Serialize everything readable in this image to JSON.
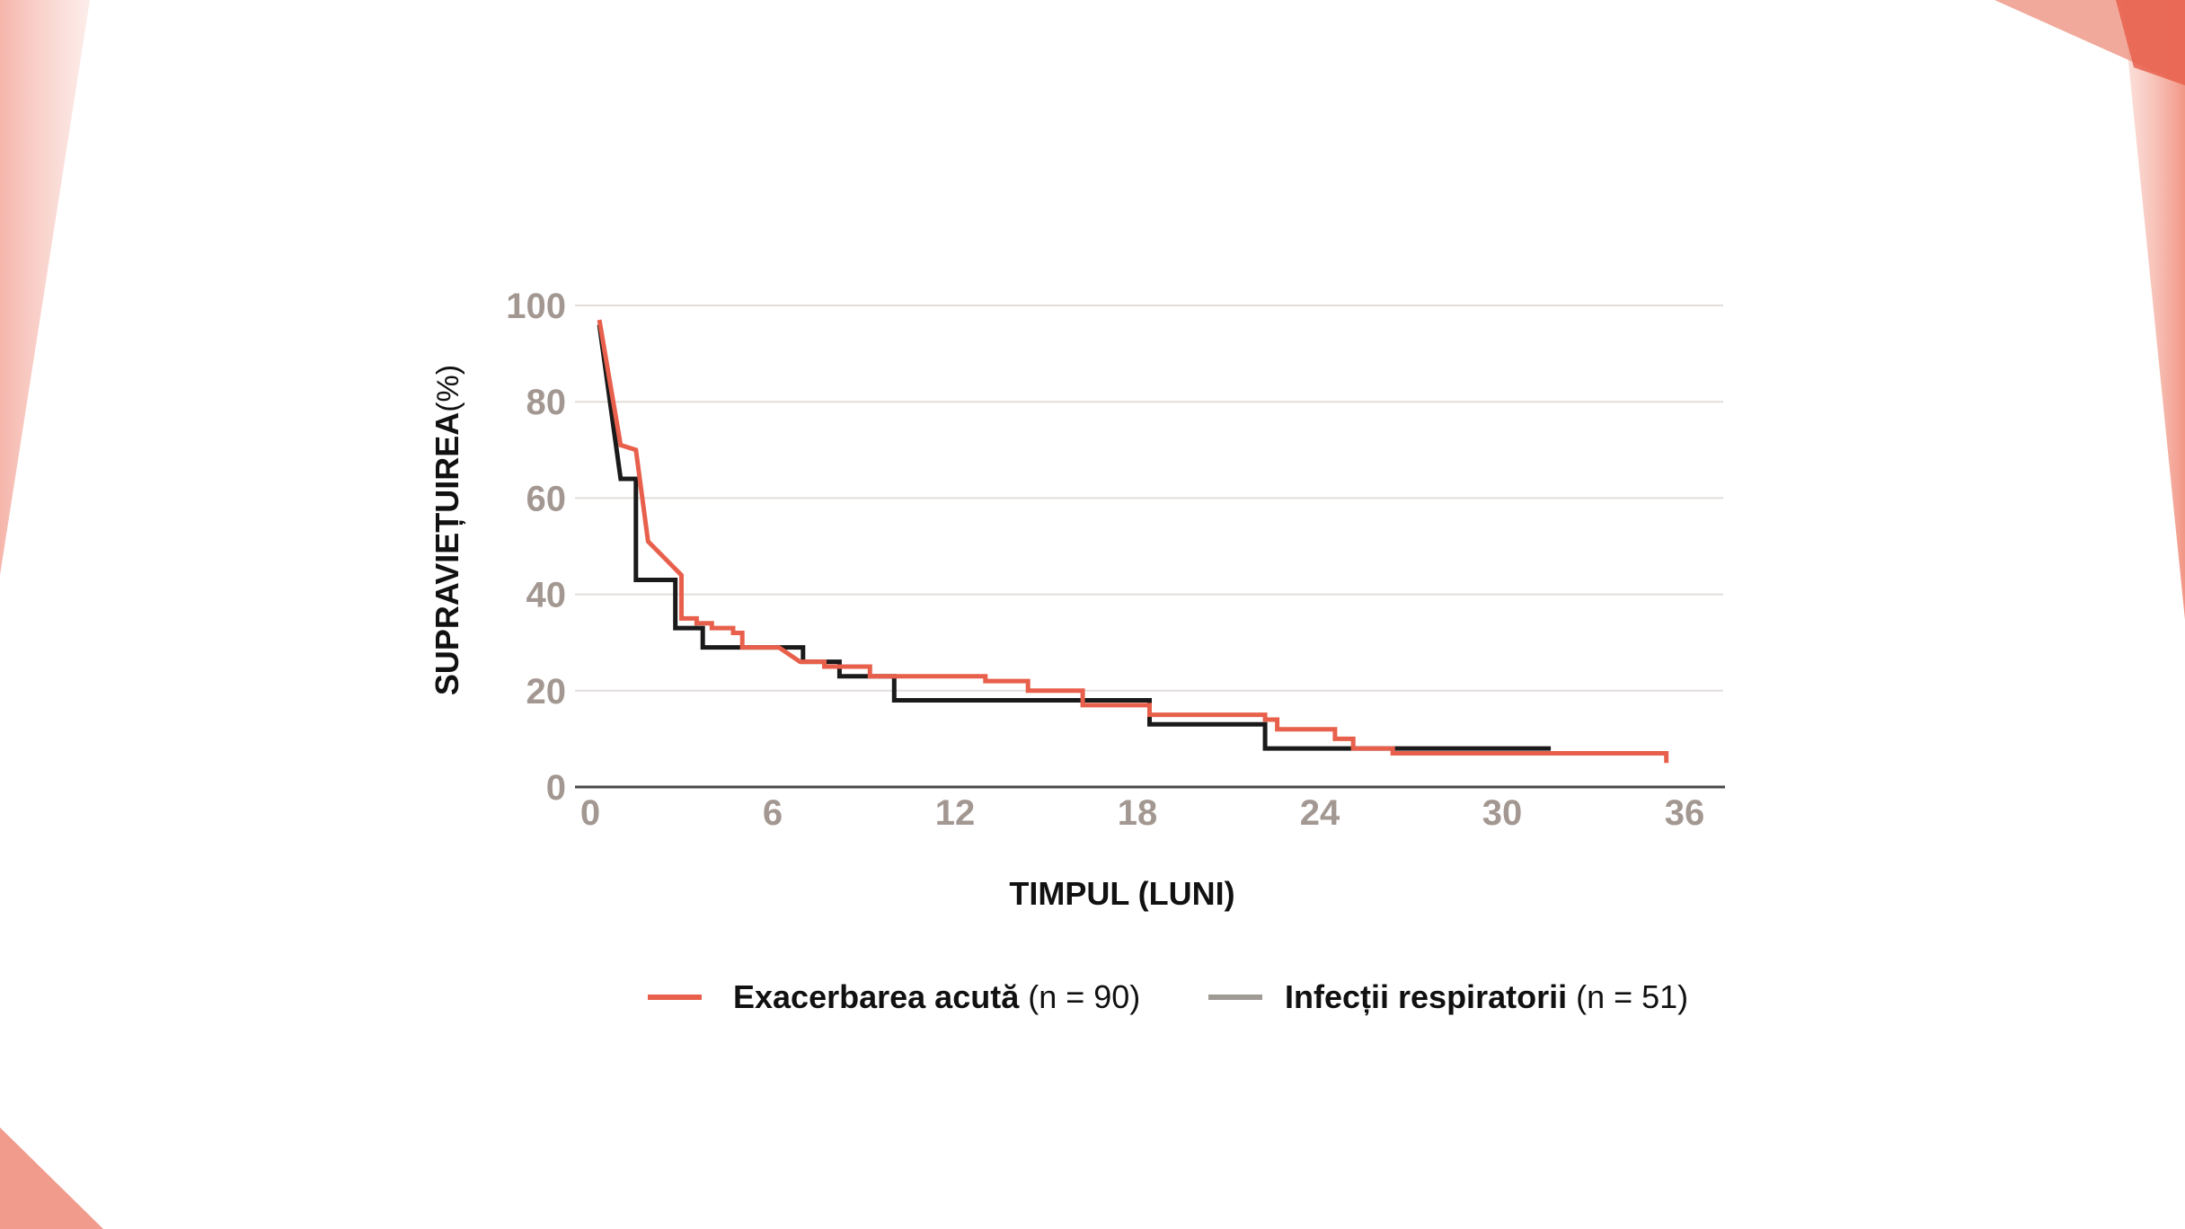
{
  "colors": {
    "accent": "#e8604c",
    "accent_light": "#f4a89c",
    "series_dark": "#1a1a1a",
    "legend_gray": "#a09a94",
    "grid": "#e2dedb",
    "tick": "#a39791"
  },
  "chart_data": {
    "type": "line",
    "step": true,
    "title": "",
    "xlabel": "TIMPUL (LUNI)",
    "ylabel": "SUPRAVIEȚUIREA",
    "ylabel_unit": "(%)",
    "xlim": [
      0,
      36
    ],
    "ylim": [
      0,
      100
    ],
    "xticks": [
      0,
      6,
      12,
      18,
      24,
      30,
      36
    ],
    "yticks": [
      0,
      20,
      40,
      60,
      80,
      100
    ],
    "grid": true,
    "legend_position": "bottom",
    "series": [
      {
        "name": "Infecții respiratorii",
        "n_label": "(n = 51)",
        "legend_color_key": "legend_gray",
        "line_color_key": "series_dark",
        "points": [
          [
            0.3,
            96
          ],
          [
            1.0,
            64
          ],
          [
            1.5,
            64
          ],
          [
            1.5,
            43
          ],
          [
            2.8,
            43
          ],
          [
            2.8,
            33
          ],
          [
            3.7,
            33
          ],
          [
            3.7,
            29
          ],
          [
            7.0,
            29
          ],
          [
            7.0,
            26
          ],
          [
            8.2,
            26
          ],
          [
            8.2,
            23
          ],
          [
            10.0,
            23
          ],
          [
            10.0,
            18
          ],
          [
            18.4,
            18
          ],
          [
            18.4,
            13
          ],
          [
            22.2,
            13
          ],
          [
            22.2,
            8
          ],
          [
            31.6,
            8
          ]
        ]
      },
      {
        "name": "Exacerbarea acută",
        "n_label": "(n = 90)",
        "legend_color_key": "accent",
        "line_color_key": "accent",
        "points": [
          [
            0.3,
            97
          ],
          [
            1.0,
            71
          ],
          [
            1.5,
            70
          ],
          [
            1.9,
            51
          ],
          [
            3.0,
            44
          ],
          [
            3.0,
            35
          ],
          [
            3.5,
            35
          ],
          [
            3.5,
            34
          ],
          [
            4.0,
            34
          ],
          [
            4.0,
            33
          ],
          [
            4.7,
            33
          ],
          [
            4.7,
            32
          ],
          [
            5.0,
            32
          ],
          [
            5.0,
            29
          ],
          [
            6.2,
            29
          ],
          [
            6.9,
            26
          ],
          [
            7.7,
            26
          ],
          [
            7.7,
            25
          ],
          [
            9.2,
            25
          ],
          [
            9.2,
            23
          ],
          [
            13.0,
            23
          ],
          [
            13.0,
            22
          ],
          [
            14.4,
            22
          ],
          [
            14.4,
            20
          ],
          [
            16.2,
            20
          ],
          [
            16.2,
            17
          ],
          [
            18.4,
            17
          ],
          [
            18.4,
            15
          ],
          [
            22.2,
            15
          ],
          [
            22.2,
            14
          ],
          [
            22.6,
            14
          ],
          [
            22.6,
            12
          ],
          [
            24.5,
            12
          ],
          [
            24.5,
            10
          ],
          [
            25.1,
            10
          ],
          [
            25.1,
            8
          ],
          [
            26.4,
            8
          ],
          [
            26.4,
            7
          ],
          [
            35.4,
            7
          ],
          [
            35.4,
            5
          ]
        ]
      }
    ]
  }
}
